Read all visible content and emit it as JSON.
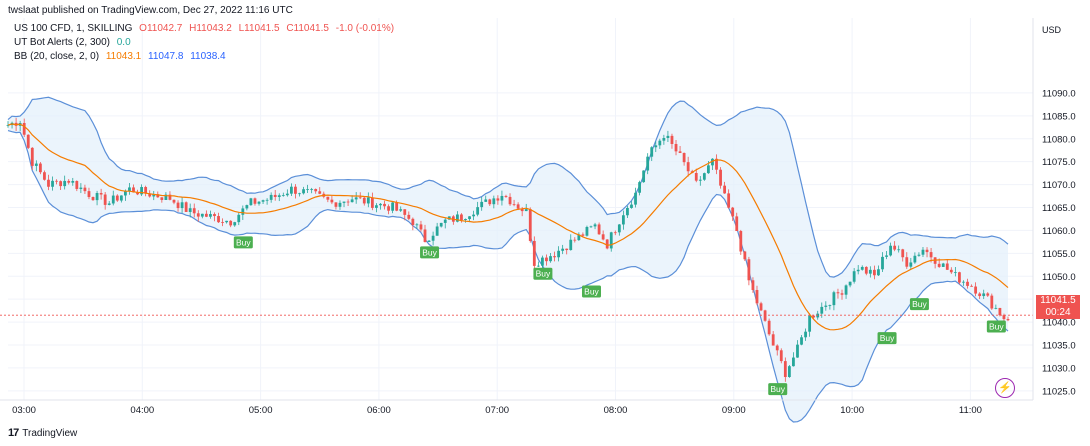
{
  "publisher": "twslaat published on TradingView.com, Dec 27, 2022 11:16 UTC",
  "legend": {
    "symbol": "US 100 CFD, 1, SKILLING",
    "o": "O11042.7",
    "h": "H11043.2",
    "l": "L11041.5",
    "c": "C11041.5",
    "chg": "-1.0 (-0.01%)",
    "ut_label": "UT Bot Alerts (2, 300)",
    "ut_value": "0.0",
    "bb_label": "BB (20, close, 2, 0)",
    "bb_mid": "11043.1",
    "bb_up": "11047.8",
    "bb_lo": "11038.4"
  },
  "currency": "USD",
  "last_price": "11041.5",
  "countdown": "00:24",
  "footer_brand": "TradingView",
  "footer_logo": "17",
  "colors": {
    "up": "#26a69a",
    "down": "#ef5350",
    "band": "#5b8fd8",
    "basis": "#f57c00",
    "buy": "#4caf50"
  },
  "chart_data": {
    "type": "candlestick",
    "y_ticks": [
      11025.0,
      11030.0,
      11035.0,
      11040.0,
      11045.0,
      11050.0,
      11055.0,
      11060.0,
      11065.0,
      11070.0,
      11075.0,
      11080.0,
      11085.0,
      11090.0
    ],
    "ylim": [
      11023,
      11095
    ],
    "x_ticks": [
      "03:00",
      "04:00",
      "05:00",
      "06:00",
      "07:00",
      "08:00",
      "09:00",
      "10:00",
      "11:00"
    ],
    "close_path": [
      [
        0,
        11083
      ],
      [
        3,
        11084
      ],
      [
        6,
        11075
      ],
      [
        10,
        11070
      ],
      [
        15,
        11071
      ],
      [
        20,
        11068
      ],
      [
        25,
        11066
      ],
      [
        30,
        11069
      ],
      [
        35,
        11068
      ],
      [
        40,
        11067
      ],
      [
        45,
        11064
      ],
      [
        50,
        11063
      ],
      [
        55,
        11062
      ],
      [
        60,
        11066
      ],
      [
        65,
        11067
      ],
      [
        70,
        11069
      ],
      [
        75,
        11068
      ],
      [
        80,
        11066
      ],
      [
        85,
        11067
      ],
      [
        90,
        11066
      ],
      [
        95,
        11065
      ],
      [
        100,
        11062
      ],
      [
        103,
        11058
      ],
      [
        108,
        11062
      ],
      [
        112,
        11063
      ],
      [
        118,
        11066
      ],
      [
        122,
        11068
      ],
      [
        128,
        11064
      ],
      [
        130,
        11053
      ],
      [
        135,
        11055
      ],
      [
        140,
        11058
      ],
      [
        145,
        11061
      ],
      [
        148,
        11057
      ],
      [
        152,
        11064
      ],
      [
        155,
        11068
      ],
      [
        158,
        11076
      ],
      [
        162,
        11081
      ],
      [
        166,
        11076
      ],
      [
        170,
        11070
      ],
      [
        174,
        11075
      ],
      [
        177,
        11067
      ],
      [
        180,
        11060
      ],
      [
        183,
        11049
      ],
      [
        186,
        11042
      ],
      [
        189,
        11035
      ],
      [
        192,
        11029
      ],
      [
        195,
        11034
      ],
      [
        198,
        11041
      ],
      [
        202,
        11044
      ],
      [
        206,
        11047
      ],
      [
        210,
        11052
      ],
      [
        214,
        11050
      ],
      [
        218,
        11057
      ],
      [
        222,
        11053
      ],
      [
        226,
        11056
      ],
      [
        230,
        11053
      ],
      [
        234,
        11050
      ],
      [
        238,
        11048
      ],
      [
        242,
        11045
      ],
      [
        246,
        11041
      ]
    ],
    "buy_signals": [
      {
        "label": "Buy",
        "t": 58
      },
      {
        "label": "Buy",
        "t": 104
      },
      {
        "label": "Buy",
        "t": 132
      },
      {
        "label": "Buy",
        "t": 144
      },
      {
        "label": "Buy",
        "t": 190
      },
      {
        "label": "Buy",
        "t": 217
      },
      {
        "label": "Buy",
        "t": 225
      },
      {
        "label": "Buy",
        "t": 244
      }
    ]
  }
}
